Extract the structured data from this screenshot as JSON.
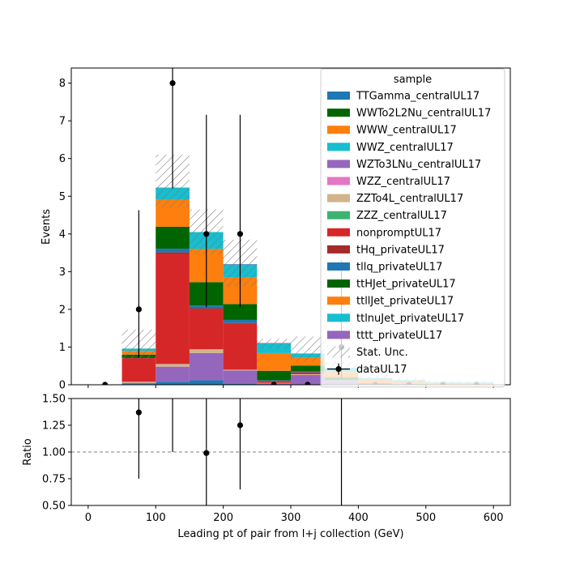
{
  "chart_data": {
    "type": "bar",
    "stacked": true,
    "xlabel": "Leading pt of pair from l+j collection (GeV)",
    "top_panel": {
      "ylabel": "Events",
      "xlim": [
        -25,
        625
      ],
      "ylim": [
        0,
        8.4
      ],
      "xticks": [
        0,
        100,
        200,
        300,
        400,
        500,
        600
      ],
      "yticks": [
        0,
        1,
        2,
        3,
        4,
        5,
        6,
        7,
        8
      ],
      "bin_edges": [
        0,
        50,
        100,
        150,
        200,
        250,
        300,
        350,
        400,
        450,
        500,
        550,
        600
      ],
      "series": [
        {
          "name": "TTGamma_centralUL17",
          "color": "#1f77b4",
          "values": [
            0,
            0.02,
            0.08,
            0.12,
            0.03,
            0.01,
            0.01,
            0,
            0,
            0,
            0,
            0
          ]
        },
        {
          "name": "WWTo2L2Nu_centralUL17",
          "color": "#006400",
          "values": [
            0,
            0,
            0,
            0,
            0,
            0,
            0,
            0,
            0,
            0,
            0,
            0
          ]
        },
        {
          "name": "WWW_centralUL17",
          "color": "#ff7f0e",
          "values": [
            0,
            0,
            0,
            0,
            0,
            0,
            0,
            0,
            0,
            0,
            0,
            0
          ]
        },
        {
          "name": "WWZ_centralUL17",
          "color": "#17becf",
          "values": [
            0,
            0,
            0,
            0,
            0,
            0,
            0,
            0,
            0,
            0,
            0,
            0
          ]
        },
        {
          "name": "WZTo3LNu_centralUL17",
          "color": "#9467bd",
          "values": [
            0,
            0.03,
            0.4,
            0.72,
            0.35,
            0.03,
            0.25,
            0.1,
            0,
            0,
            0,
            0
          ]
        },
        {
          "name": "WZZ_centralUL17",
          "color": "#e377c2",
          "values": [
            0,
            0,
            0,
            0,
            0,
            0,
            0,
            0,
            0,
            0,
            0,
            0
          ]
        },
        {
          "name": "ZZTo4L_centralUL17",
          "color": "#d2b48c",
          "values": [
            0,
            0.03,
            0.07,
            0.1,
            0.02,
            0.01,
            0.02,
            0.01,
            0,
            0,
            0,
            0
          ]
        },
        {
          "name": "ZZZ_centralUL17",
          "color": "#3cb371",
          "values": [
            0,
            0,
            0,
            0,
            0,
            0,
            0,
            0,
            0,
            0,
            0,
            0
          ]
        },
        {
          "name": "nonpromptUL17",
          "color": "#d62728",
          "values": [
            0,
            0.62,
            2.92,
            1.06,
            1.22,
            0.05,
            0.05,
            0,
            0,
            0,
            0,
            0
          ]
        },
        {
          "name": "tHq_privateUL17",
          "color": "#a52a2a",
          "values": [
            0,
            0.02,
            0.04,
            0.03,
            0.02,
            0,
            0,
            0,
            0,
            0,
            0,
            0
          ]
        },
        {
          "name": "tllq_privateUL17",
          "color": "#1f77b4",
          "values": [
            0,
            0,
            0.1,
            0.07,
            0.08,
            0.02,
            0.02,
            0.01,
            0,
            0,
            0,
            0
          ]
        },
        {
          "name": "ttHJet_privateUL17",
          "color": "#006400",
          "values": [
            0,
            0.08,
            0.58,
            0.62,
            0.42,
            0.25,
            0.16,
            0.08,
            0.04,
            0.02,
            0.01,
            0.01
          ]
        },
        {
          "name": "ttllJet_privateUL17",
          "color": "#ff7f0e",
          "values": [
            0,
            0.1,
            0.73,
            0.88,
            0.7,
            0.47,
            0.22,
            0.14,
            0.09,
            0.06,
            0.04,
            0.03
          ]
        },
        {
          "name": "ttlnuJet_privateUL17",
          "color": "#17becf",
          "values": [
            0,
            0.06,
            0.31,
            0.45,
            0.35,
            0.26,
            0.1,
            0.11,
            0.05,
            0.04,
            0.02,
            0.02
          ]
        },
        {
          "name": "tttt_privateUL17",
          "color": "#9467bd",
          "values": [
            0,
            0,
            0,
            0,
            0.01,
            0.01,
            0,
            0,
            0,
            0,
            0,
            0
          ]
        }
      ],
      "stat_unc": {
        "name": "Stat. Unc.",
        "lower": [
          0,
          0.68,
          4.7,
          3.45,
          2.6,
          0.95,
          0.6,
          0.32,
          0.1,
          0.06,
          0.03,
          0.02
        ],
        "upper": [
          0,
          1.46,
          6.1,
          4.65,
          3.85,
          1.22,
          1.28,
          0.6,
          0.26,
          0.18,
          0.12,
          0.1
        ]
      },
      "data": {
        "name": "dataUL17",
        "x": [
          25,
          75,
          125,
          175,
          225,
          275,
          325,
          375,
          425,
          475,
          525,
          575
        ],
        "y": [
          0,
          2,
          8,
          4,
          4,
          0,
          0,
          1,
          0,
          0,
          0,
          0
        ],
        "err_low": [
          0,
          1.29,
          2.79,
          1.94,
          1.94,
          0,
          0,
          0.83,
          0,
          0,
          0,
          0
        ],
        "err_high": [
          0,
          2.63,
          3.98,
          3.16,
          3.16,
          0,
          0,
          2.3,
          0,
          0,
          0,
          0
        ]
      },
      "legend": {
        "title": "sample",
        "placement": "upper-right"
      }
    },
    "bottom_panel": {
      "ylabel": "Ratio",
      "ylim": [
        0.5,
        1.5
      ],
      "yticks": [
        "0.50",
        "0.75",
        "1.00",
        "1.25",
        "1.50"
      ],
      "ytick_values": [
        0.5,
        0.75,
        1.0,
        1.25,
        1.5
      ],
      "reference_line": 1.0,
      "points": [
        {
          "x": 75,
          "y": 1.37,
          "lo": 0.75,
          "hi": 2.0
        },
        {
          "x": 125,
          "y": 1.52,
          "lo": 1.0,
          "hi": 2.0
        },
        {
          "x": 175,
          "y": 0.99,
          "lo": 0.5,
          "hi": 1.8
        },
        {
          "x": 225,
          "y": 1.25,
          "lo": 0.65,
          "hi": 2.0
        },
        {
          "x": 375,
          "y": 2.6,
          "lo": 0.4,
          "hi": 4.0
        }
      ]
    }
  }
}
